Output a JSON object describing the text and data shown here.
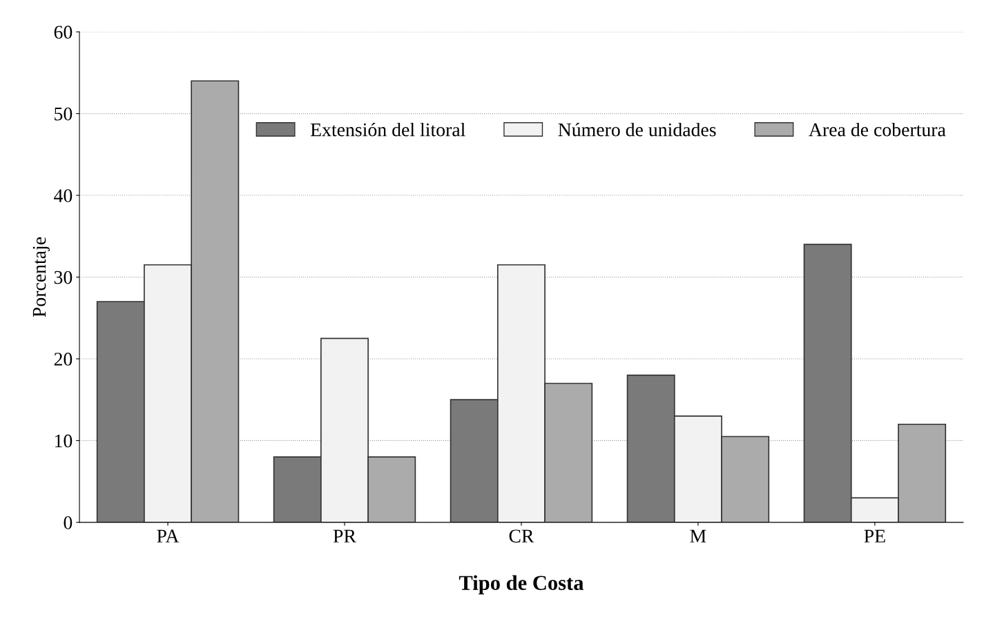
{
  "chart_data": {
    "type": "bar",
    "xlabel": "Tipo de Costa",
    "ylabel": "Porcentaje",
    "categories": [
      "PA",
      "PR",
      "CR",
      "M",
      "PE"
    ],
    "series": [
      {
        "name": "Extensión del litoral",
        "color": "#7a7a7a",
        "values": [
          27,
          8,
          15,
          18,
          34
        ]
      },
      {
        "name": "Número de unidades",
        "color": "#f2f2f2",
        "values": [
          31.5,
          22.5,
          31.5,
          13,
          3
        ]
      },
      {
        "name": "Area de cobertura",
        "color": "#ababab",
        "values": [
          54,
          8,
          17,
          10.5,
          12
        ]
      }
    ],
    "ylim": [
      0,
      60
    ],
    "yticks": [
      0,
      10,
      20,
      30,
      40,
      50,
      60
    ],
    "grid": "y",
    "legend": "top right"
  }
}
